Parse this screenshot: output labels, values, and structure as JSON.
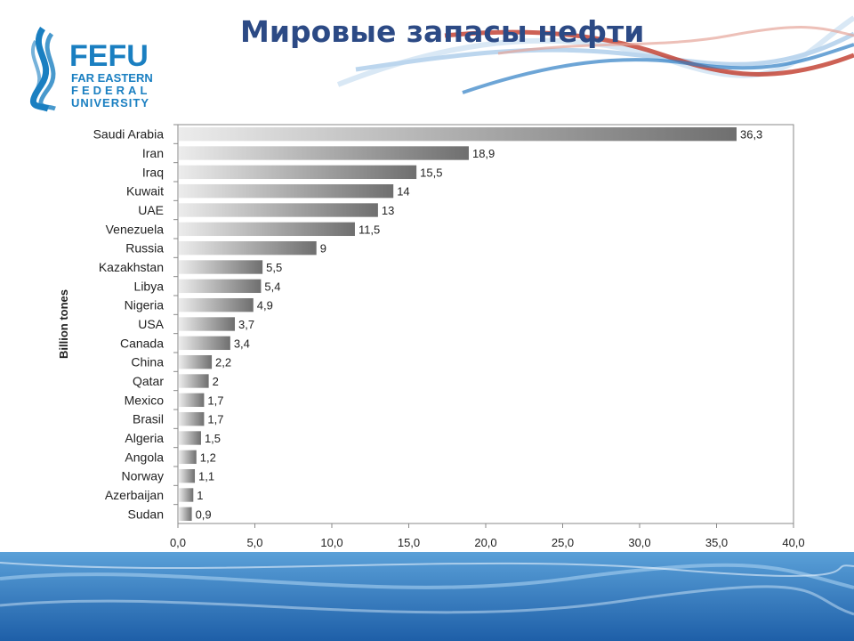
{
  "slide": {
    "title": "Мировые запасы нефти",
    "logo": {
      "word": "FEFU",
      "line1": "FAR EASTERN",
      "line2": "FEDERAL",
      "line3": "UNIVERSITY"
    }
  },
  "colors": {
    "title": "#2c4a85",
    "logo_blue": "#1a7fc1",
    "wave_red": "#c0392b",
    "wave_blue": "#2f7fc4",
    "bar_light": "#ececec",
    "bar_dark": "#6f6f6f"
  },
  "chart_data": {
    "type": "bar",
    "orientation": "horizontal",
    "categories": [
      "Saudi Arabia",
      "Iran",
      "Iraq",
      "Kuwait",
      "UAE",
      "Venezuela",
      "Russia",
      "Kazakhstan",
      "Libya",
      "Nigeria",
      "USA",
      "Canada",
      "China",
      "Qatar",
      "Mexico",
      "Brasil",
      "Algeria",
      "Angola",
      "Norway",
      "Azerbaijan",
      "Sudan"
    ],
    "values": [
      36.3,
      18.9,
      15.5,
      14,
      13,
      11.5,
      9,
      5.5,
      5.4,
      4.9,
      3.7,
      3.4,
      2.2,
      2,
      1.7,
      1.7,
      1.5,
      1.2,
      1.1,
      1,
      0.9
    ],
    "value_labels": [
      "36,3",
      "18,9",
      "15,5",
      "14",
      "13",
      "11,5",
      "9",
      "5,5",
      "5,4",
      "4,9",
      "3,7",
      "3,4",
      "2,2",
      "2",
      "1,7",
      "1,7",
      "1,5",
      "1,2",
      "1,1",
      "1",
      "0,9"
    ],
    "xlim": [
      0,
      40
    ],
    "xticks": [
      0,
      5,
      10,
      15,
      20,
      25,
      30,
      35,
      40
    ],
    "xtick_labels": [
      "0,0",
      "5,0",
      "10,0",
      "15,0",
      "20,0",
      "25,0",
      "30,0",
      "35,0",
      "40,0"
    ],
    "ylabel": "Billion tones",
    "xlabel": "",
    "title": "",
    "grid": false,
    "legend": "none"
  }
}
